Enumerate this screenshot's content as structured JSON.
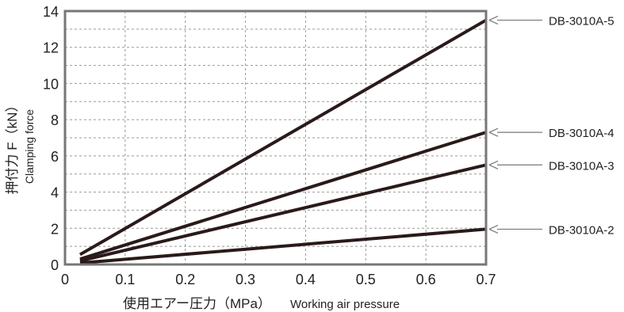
{
  "chart_data": {
    "type": "line",
    "title": "",
    "xlabel_jp": "使用エアー圧力（MPa）",
    "xlabel_en": "Working air pressure",
    "ylabel_jp": "押付力 F（kN）",
    "ylabel_en": "Clamping force",
    "xlim": [
      0,
      0.7
    ],
    "ylim": [
      0,
      14
    ],
    "xticks": [
      "0",
      "0.1",
      "0.2",
      "0.3",
      "0.4",
      "0.5",
      "0.6",
      "0.7"
    ],
    "yticks": [
      "0",
      "2",
      "4",
      "6",
      "8",
      "10",
      "12",
      "14"
    ],
    "grid": true,
    "series": [
      {
        "name": "DB-3010A-5",
        "x": [
          0.025,
          0.7
        ],
        "y": [
          0.55,
          13.5
        ]
      },
      {
        "name": "DB-3010A-4",
        "x": [
          0.025,
          0.7
        ],
        "y": [
          0.3,
          7.3
        ]
      },
      {
        "name": "DB-3010A-3",
        "x": [
          0.025,
          0.7
        ],
        "y": [
          0.2,
          5.5
        ]
      },
      {
        "name": "DB-3010A-2",
        "x": [
          0.025,
          0.7
        ],
        "y": [
          0.08,
          1.95
        ]
      }
    ],
    "colors": {
      "line": "#2a1a1a",
      "grid": "#999999",
      "frame": "#777777",
      "arrow": "#777777"
    }
  }
}
